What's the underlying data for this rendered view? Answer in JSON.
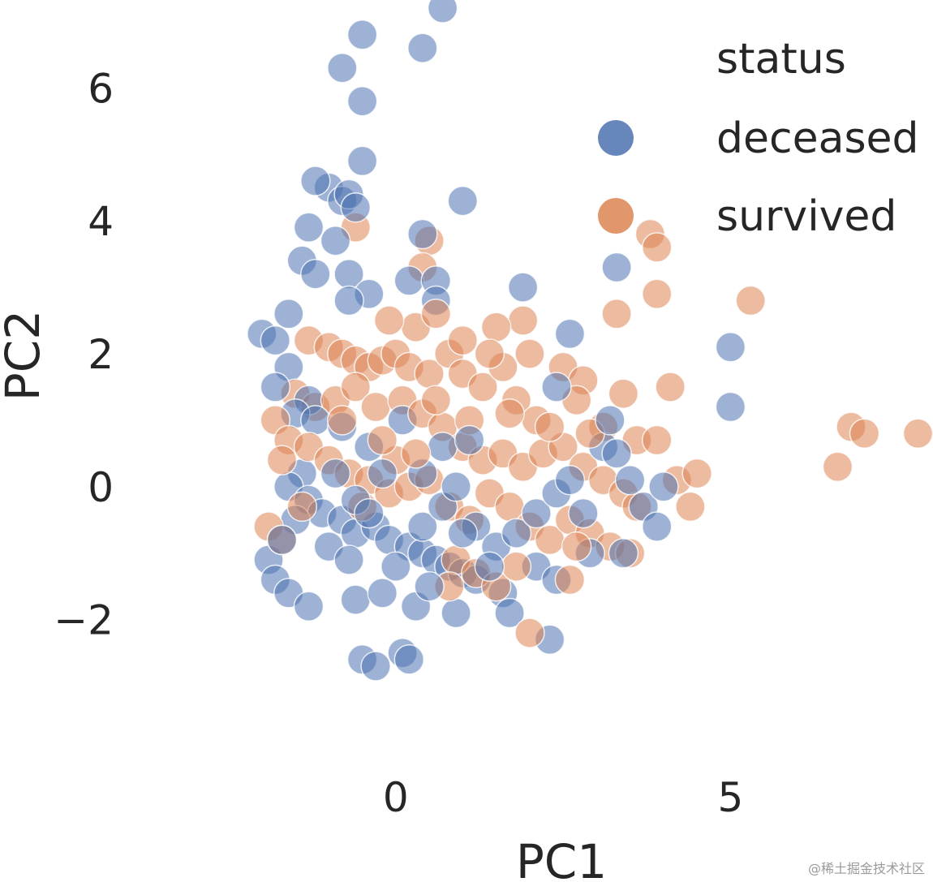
{
  "chart_data": {
    "type": "scatter",
    "title": "",
    "xlabel": "PC1",
    "ylabel": "PC2",
    "xlim": [
      -3.1,
      8.0
    ],
    "ylim": [
      -3.2,
      7.2
    ],
    "xticks": [
      {
        "value": 0,
        "label": "0"
      },
      {
        "value": 5,
        "label": "5"
      }
    ],
    "yticks": [
      {
        "value": -2,
        "label": "−2"
      },
      {
        "value": 0,
        "label": "0"
      },
      {
        "value": 2,
        "label": "2"
      },
      {
        "value": 4,
        "label": "4"
      },
      {
        "value": 6,
        "label": "6"
      }
    ],
    "grid": false,
    "marker_alpha": 0.55,
    "legend": {
      "title": "status",
      "position": "top-right",
      "entries": [
        {
          "label": "deceased",
          "color": "#4c72b0"
        },
        {
          "label": "survived",
          "color": "#dd8452"
        }
      ]
    },
    "series": [
      {
        "name": "deceased",
        "color": "#4c72b0",
        "points": [
          [
            -0.5,
            6.8
          ],
          [
            -0.8,
            6.3
          ],
          [
            -0.5,
            5.8
          ],
          [
            0.7,
            7.2
          ],
          [
            0.4,
            6.6
          ],
          [
            -0.5,
            4.9
          ],
          [
            -1.0,
            4.5
          ],
          [
            -0.8,
            4.3
          ],
          [
            -0.7,
            4.4
          ],
          [
            -0.6,
            4.2
          ],
          [
            -1.2,
            4.6
          ],
          [
            -1.3,
            3.9
          ],
          [
            -0.9,
            3.7
          ],
          [
            0.4,
            3.8
          ],
          [
            1.0,
            4.3
          ],
          [
            -1.4,
            3.4
          ],
          [
            -1.2,
            3.2
          ],
          [
            -0.7,
            3.2
          ],
          [
            -0.4,
            2.9
          ],
          [
            -0.7,
            2.8
          ],
          [
            0.2,
            3.1
          ],
          [
            0.6,
            3.1
          ],
          [
            0.6,
            2.8
          ],
          [
            -1.6,
            2.6
          ],
          [
            -2.0,
            2.3
          ],
          [
            -1.8,
            2.2
          ],
          [
            1.9,
            3.0
          ],
          [
            2.6,
            2.3
          ],
          [
            3.3,
            3.3
          ],
          [
            5.0,
            2.1
          ],
          [
            5.0,
            1.2
          ],
          [
            -1.6,
            1.8
          ],
          [
            -1.8,
            1.5
          ],
          [
            -1.3,
            1.3
          ],
          [
            -1.5,
            1.1
          ],
          [
            -1.2,
            1.0
          ],
          [
            -0.8,
            0.9
          ],
          [
            0.1,
            1.0
          ],
          [
            -0.4,
            0.6
          ],
          [
            -1.4,
            0.2
          ],
          [
            -1.6,
            0.0
          ],
          [
            -1.3,
            -0.2
          ],
          [
            -1.1,
            -0.4
          ],
          [
            -0.8,
            -0.5
          ],
          [
            -0.6,
            -0.7
          ],
          [
            -0.3,
            -0.6
          ],
          [
            -0.1,
            -0.8
          ],
          [
            0.2,
            -0.9
          ],
          [
            0.4,
            -1.0
          ],
          [
            0.6,
            -1.1
          ],
          [
            0.8,
            -1.2
          ],
          [
            1.0,
            -1.3
          ],
          [
            1.2,
            -1.4
          ],
          [
            -1.0,
            -0.9
          ],
          [
            -0.7,
            -1.1
          ],
          [
            -1.5,
            -0.5
          ],
          [
            -1.9,
            -1.1
          ],
          [
            -1.8,
            -1.4
          ],
          [
            -1.6,
            -1.6
          ],
          [
            -1.3,
            -1.8
          ],
          [
            -0.6,
            -1.7
          ],
          [
            0.3,
            -1.8
          ],
          [
            -0.5,
            -2.6
          ],
          [
            -0.3,
            -2.7
          ],
          [
            0.1,
            -2.5
          ],
          [
            0.2,
            -2.6
          ],
          [
            0.9,
            -1.9
          ],
          [
            1.6,
            -1.6
          ],
          [
            1.7,
            -1.9
          ],
          [
            2.1,
            -1.2
          ],
          [
            2.4,
            -1.4
          ],
          [
            2.3,
            -2.3
          ],
          [
            0.4,
            -0.6
          ],
          [
            0.7,
            -0.3
          ],
          [
            0.9,
            0.0
          ],
          [
            1.2,
            -0.6
          ],
          [
            1.5,
            -0.9
          ],
          [
            1.8,
            -0.7
          ],
          [
            2.1,
            -0.4
          ],
          [
            2.4,
            -0.1
          ],
          [
            2.6,
            0.1
          ],
          [
            2.8,
            -0.4
          ],
          [
            3.1,
            0.6
          ],
          [
            3.3,
            0.5
          ],
          [
            3.5,
            0.1
          ],
          [
            3.7,
            -0.3
          ],
          [
            4.0,
            0.0
          ],
          [
            3.9,
            -0.6
          ],
          [
            3.4,
            -1.0
          ],
          [
            2.9,
            -1.0
          ],
          [
            0.4,
            0.2
          ],
          [
            0.7,
            0.6
          ],
          [
            -0.2,
            0.2
          ],
          [
            -0.9,
            0.2
          ],
          [
            -0.6,
            -0.2
          ],
          [
            -0.4,
            -0.4
          ],
          [
            -1.7,
            -0.8
          ],
          [
            1.1,
            0.7
          ],
          [
            1.0,
            -0.7
          ],
          [
            0.0,
            -1.2
          ],
          [
            0.5,
            -1.5
          ],
          [
            1.4,
            -1.2
          ],
          [
            -0.2,
            -1.6
          ],
          [
            3.2,
            1.0
          ],
          [
            2.4,
            1.5
          ]
        ]
      },
      {
        "name": "survived",
        "color": "#dd8452",
        "points": [
          [
            -0.6,
            3.9
          ],
          [
            0.5,
            3.7
          ],
          [
            3.8,
            3.8
          ],
          [
            3.9,
            3.6
          ],
          [
            0.4,
            3.3
          ],
          [
            3.9,
            2.9
          ],
          [
            5.3,
            2.8
          ],
          [
            3.3,
            2.6
          ],
          [
            1.9,
            2.5
          ],
          [
            1.5,
            2.4
          ],
          [
            -1.3,
            2.2
          ],
          [
            -1.0,
            2.1
          ],
          [
            -0.8,
            2.0
          ],
          [
            -0.6,
            1.9
          ],
          [
            -0.4,
            1.8
          ],
          [
            -0.2,
            1.9
          ],
          [
            0.0,
            2.0
          ],
          [
            0.2,
            1.8
          ],
          [
            0.5,
            1.7
          ],
          [
            0.8,
            2.0
          ],
          [
            1.0,
            1.7
          ],
          [
            1.3,
            1.5
          ],
          [
            1.6,
            1.8
          ],
          [
            1.8,
            1.3
          ],
          [
            2.1,
            1.0
          ],
          [
            2.5,
            1.8
          ],
          [
            2.8,
            1.6
          ],
          [
            3.1,
            0.9
          ],
          [
            3.6,
            0.7
          ],
          [
            3.9,
            0.7
          ],
          [
            4.1,
            1.5
          ],
          [
            -1.5,
            1.4
          ],
          [
            -1.2,
            1.2
          ],
          [
            -0.9,
            1.3
          ],
          [
            -0.6,
            1.5
          ],
          [
            -0.3,
            1.2
          ],
          [
            0.1,
            1.3
          ],
          [
            0.4,
            1.1
          ],
          [
            0.7,
            0.9
          ],
          [
            1.0,
            0.6
          ],
          [
            1.3,
            0.4
          ],
          [
            1.6,
            0.5
          ],
          [
            1.9,
            0.3
          ],
          [
            2.2,
            0.5
          ],
          [
            2.5,
            0.6
          ],
          [
            2.8,
            0.3
          ],
          [
            3.1,
            0.1
          ],
          [
            3.4,
            -0.1
          ],
          [
            3.6,
            -0.3
          ],
          [
            -1.8,
            1.0
          ],
          [
            -1.6,
            0.7
          ],
          [
            -1.3,
            0.6
          ],
          [
            -1.0,
            0.4
          ],
          [
            -0.7,
            0.2
          ],
          [
            -0.4,
            0.1
          ],
          [
            -0.1,
            -0.1
          ],
          [
            0.2,
            0.0
          ],
          [
            0.5,
            0.1
          ],
          [
            0.8,
            -0.3
          ],
          [
            1.1,
            -0.5
          ],
          [
            1.4,
            -0.1
          ],
          [
            1.7,
            -0.3
          ],
          [
            2.0,
            -0.6
          ],
          [
            2.3,
            -0.8
          ],
          [
            2.6,
            -0.5
          ],
          [
            2.9,
            -0.7
          ],
          [
            3.2,
            -0.9
          ],
          [
            3.5,
            -1.0
          ],
          [
            -1.9,
            -0.6
          ],
          [
            -1.7,
            -0.8
          ],
          [
            -1.4,
            -0.3
          ],
          [
            -0.5,
            -0.3
          ],
          [
            0.0,
            0.4
          ],
          [
            0.9,
            -1.1
          ],
          [
            1.2,
            -1.3
          ],
          [
            1.5,
            -1.5
          ],
          [
            0.8,
            -1.5
          ],
          [
            2.6,
            -1.4
          ],
          [
            2.0,
            -2.2
          ],
          [
            4.2,
            0.1
          ],
          [
            4.5,
            0.2
          ],
          [
            4.4,
            -0.3
          ],
          [
            6.8,
            0.9
          ],
          [
            7.0,
            0.8
          ],
          [
            7.8,
            0.8
          ],
          [
            6.6,
            0.3
          ],
          [
            2.0,
            2.0
          ],
          [
            2.7,
            1.3
          ],
          [
            3.4,
            1.4
          ],
          [
            0.3,
            2.4
          ],
          [
            -0.1,
            2.5
          ],
          [
            0.6,
            2.6
          ],
          [
            1.4,
            2.0
          ],
          [
            -1.7,
            0.4
          ],
          [
            1.1,
            1.0
          ],
          [
            1.7,
            1.1
          ],
          [
            2.3,
            0.9
          ],
          [
            2.9,
            0.8
          ],
          [
            0.3,
            0.5
          ],
          [
            -0.2,
            0.7
          ],
          [
            1.8,
            -1.2
          ],
          [
            2.7,
            -0.9
          ],
          [
            0.6,
            1.3
          ],
          [
            -0.8,
            1.0
          ],
          [
            1.0,
            2.2
          ]
        ]
      }
    ],
    "watermark": "@稀土掘金技术社区"
  }
}
